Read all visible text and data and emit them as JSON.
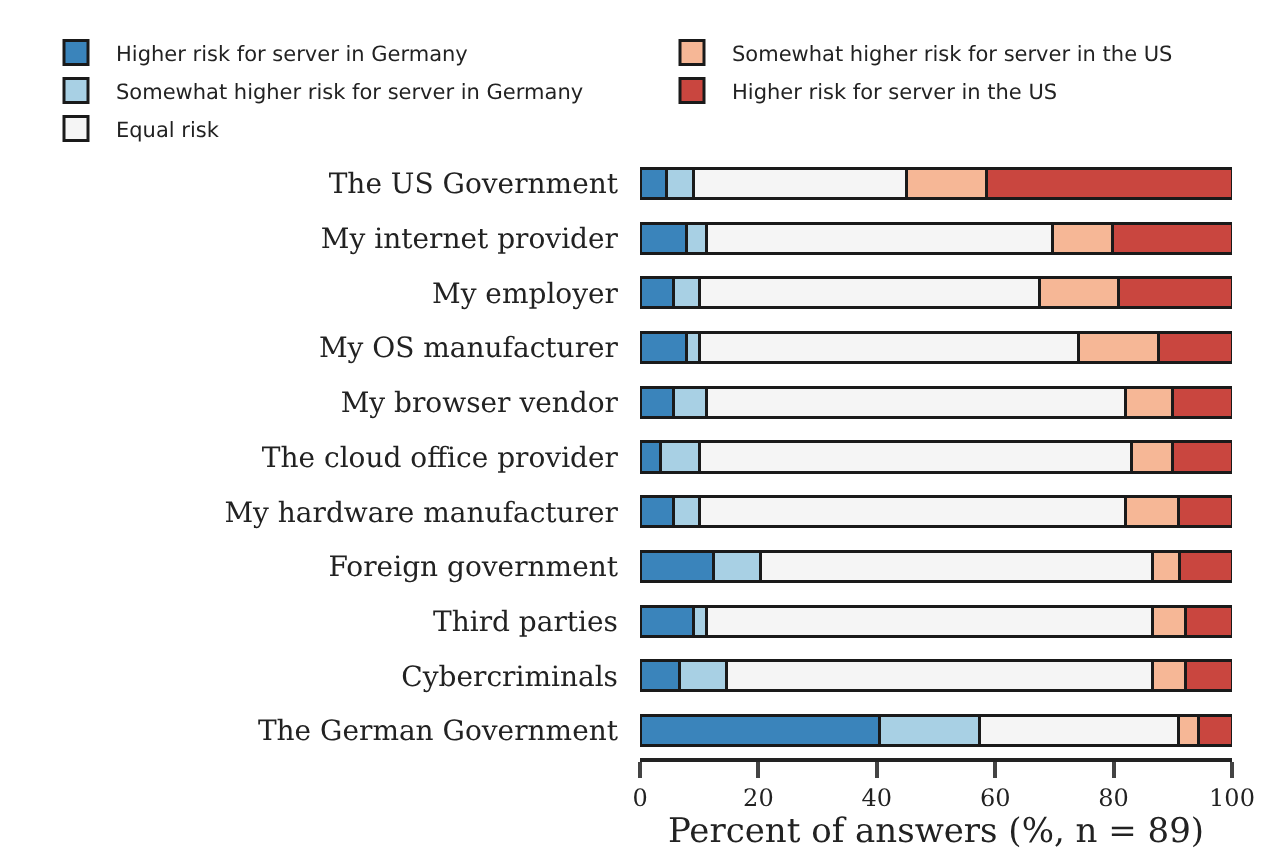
{
  "chart_data": {
    "type": "bar",
    "orientation": "horizontal",
    "stacked": true,
    "xlabel": "Percent of answers (%, n = 89)",
    "categories": [
      "The US Government",
      "My internet provider",
      "My employer",
      "My OS manufacturer",
      "My browser vendor",
      "The cloud office provider",
      "My hardware manufacturer",
      "Foreign government",
      "Third parties",
      "Cybercriminals",
      "The German Government"
    ],
    "series": [
      {
        "name": "Higher risk for server in Germany",
        "color": "#3a84bb",
        "values": [
          4.5,
          7.9,
          5.6,
          7.9,
          5.6,
          3.4,
          5.6,
          12.4,
          9.0,
          6.7,
          40.4
        ]
      },
      {
        "name": "Somewhat higher risk for server in Germany",
        "color": "#a8d0e4",
        "values": [
          4.5,
          3.4,
          4.5,
          2.2,
          5.6,
          6.7,
          4.5,
          7.9,
          2.2,
          7.9,
          16.9
        ]
      },
      {
        "name": "Equal risk",
        "color": "#f5f5f5",
        "values": [
          36.0,
          58.4,
          57.3,
          64.0,
          70.8,
          73.0,
          71.9,
          66.3,
          75.3,
          71.9,
          33.7
        ]
      },
      {
        "name": "Somewhat higher risk for server in the US",
        "color": "#f6b796",
        "values": [
          13.5,
          10.1,
          13.5,
          13.5,
          7.9,
          6.8,
          9.0,
          4.5,
          5.6,
          5.6,
          3.4
        ]
      },
      {
        "name": "Higher risk for server in the US",
        "color": "#c9463f",
        "values": [
          41.5,
          20.2,
          19.1,
          12.4,
          10.1,
          10.1,
          9.0,
          8.9,
          7.9,
          7.9,
          5.6
        ]
      }
    ],
    "xlim": [
      0,
      100
    ],
    "xticks": [
      0,
      20,
      40,
      60,
      80,
      100
    ],
    "legend": "top"
  }
}
